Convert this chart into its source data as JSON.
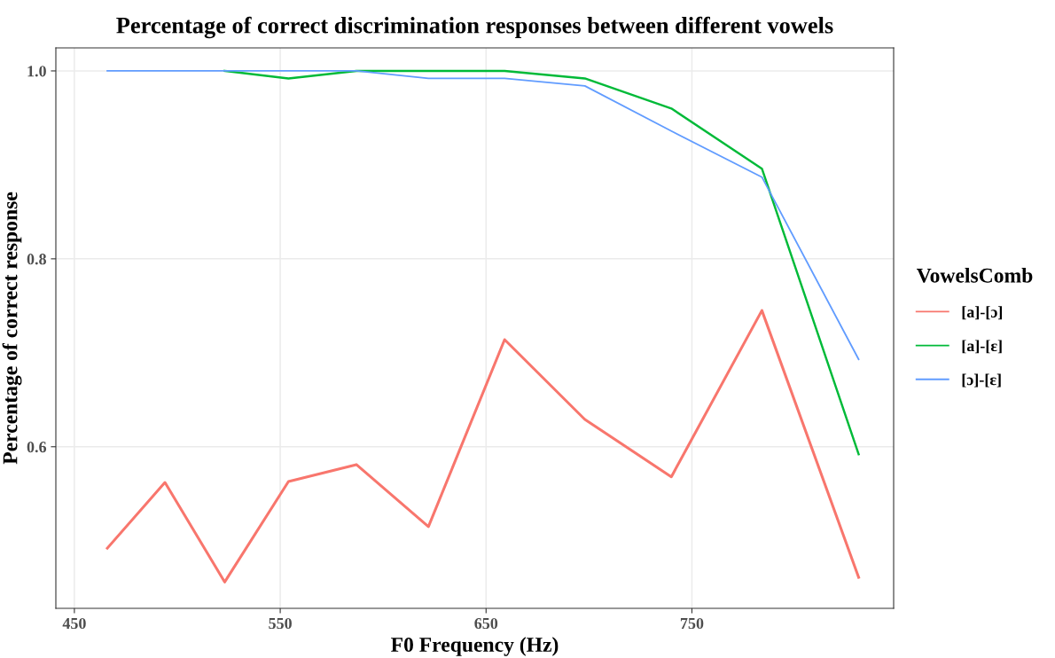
{
  "chart_data": {
    "type": "line",
    "title": "Percentage of correct discrimination responses between different vowels",
    "xlabel": "F0 Frequency (Hz)",
    "ylabel": "Percentage of correct response",
    "legend_title": "VowelsComb",
    "legend": "right",
    "grid": true,
    "x": [
      466,
      494,
      523,
      554,
      587,
      622,
      659,
      698,
      740,
      784,
      831
    ],
    "xlim": [
      441,
      848
    ],
    "xticks": [
      450,
      550,
      650,
      750
    ],
    "ylim": [
      0.428,
      1.0245
    ],
    "yticks": [
      {
        "value": 0.6,
        "label": "0.6"
      },
      {
        "value": 0.8,
        "label": "0.8"
      },
      {
        "value": 1.0,
        "label": "1.0"
      }
    ],
    "series": [
      {
        "name": "[a]-[ɔ]",
        "color": "#f8766d",
        "values": [
          0.492,
          0.562,
          0.456,
          0.563,
          0.581,
          0.515,
          0.714,
          0.629,
          0.568,
          0.745,
          0.461
        ]
      },
      {
        "name": "[a]-[ɛ]",
        "color": "#00ba38",
        "values": [
          null,
          null,
          1.0,
          0.992,
          1.0,
          1.0,
          1.0,
          0.992,
          0.96,
          0.896,
          0.592
        ]
      },
      {
        "name": "[ɔ]-[ɛ]",
        "color": "#619cff",
        "values": [
          1.0,
          1.0,
          1.0,
          1.0,
          1.0,
          0.992,
          0.992,
          0.984,
          0.936,
          0.887,
          0.693
        ]
      }
    ]
  }
}
